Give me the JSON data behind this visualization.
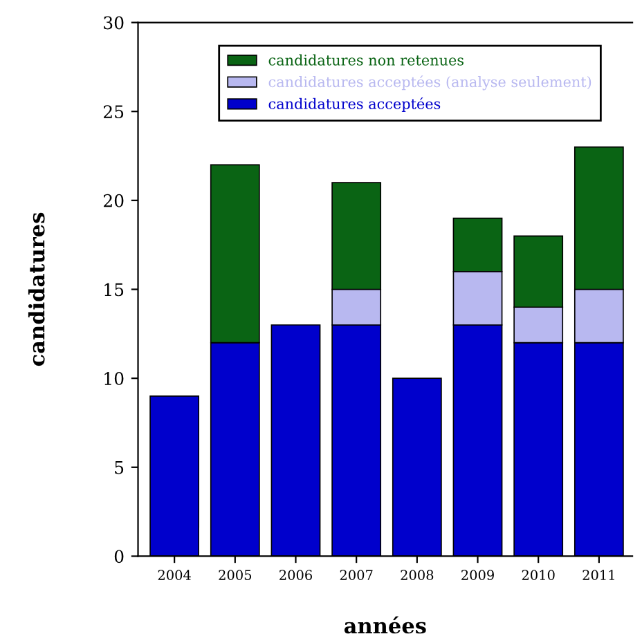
{
  "chart_data": {
    "type": "bar",
    "stacked": true,
    "xlabel": "années",
    "ylabel": "candidatures",
    "categories": [
      "2004",
      "2005",
      "2006",
      "2007",
      "2008",
      "2009",
      "2010",
      "2011"
    ],
    "series": [
      {
        "name": "candidatures acceptées",
        "color": "#0000cc",
        "values": [
          9,
          12,
          13,
          13,
          10,
          13,
          12,
          12
        ]
      },
      {
        "name": "candidatures acceptées (analyse seulement)",
        "color": "#b8b8f0",
        "values": [
          null,
          null,
          null,
          2,
          null,
          3,
          2,
          3
        ]
      },
      {
        "name": "candidatures non retenues",
        "color": "#0a6414",
        "values": [
          null,
          10,
          null,
          6,
          null,
          3,
          4,
          8
        ]
      }
    ],
    "ylim": [
      0,
      30
    ],
    "yticks": [
      0,
      5,
      10,
      15,
      20,
      25,
      30
    ],
    "grid": false,
    "legend": "top"
  }
}
